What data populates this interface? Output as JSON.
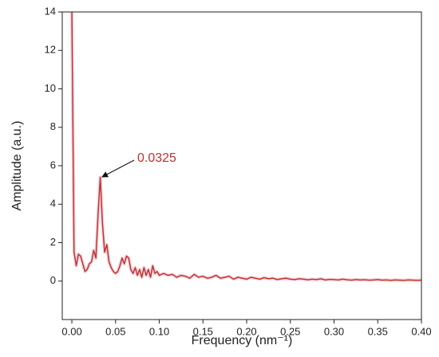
{
  "chart_data": {
    "type": "line",
    "xlabel": "Frequency (nm⁻¹)",
    "ylabel": "Amplitude (a.u.)",
    "annotation": "0.0325",
    "xlim": [
      -0.011,
      0.4
    ],
    "ylim": [
      -2,
      14
    ],
    "xticks": [
      {
        "value": 0,
        "label": "0.00"
      },
      {
        "value": 0.05,
        "label": "0.05"
      },
      {
        "value": 0.1,
        "label": "0.10"
      },
      {
        "value": 0.15,
        "label": "0.15"
      },
      {
        "value": 0.2,
        "label": "0.20"
      },
      {
        "value": 0.25,
        "label": "0.25"
      },
      {
        "value": 0.3,
        "label": "0.30"
      },
      {
        "value": 0.35,
        "label": "0.35"
      },
      {
        "value": 0.4,
        "label": "0.40"
      }
    ],
    "yticks": [
      0,
      2,
      4,
      6,
      8,
      10,
      12,
      14
    ],
    "x": [
      0,
      0.0025,
      0.005,
      0.0075,
      0.01,
      0.0125,
      0.015,
      0.0175,
      0.02,
      0.0225,
      0.025,
      0.0275,
      0.03,
      0.0325,
      0.035,
      0.0375,
      0.04,
      0.0425,
      0.045,
      0.0475,
      0.05,
      0.0525,
      0.055,
      0.0575,
      0.06,
      0.0625,
      0.065,
      0.0675,
      0.07,
      0.0725,
      0.075,
      0.0775,
      0.08,
      0.0825,
      0.085,
      0.0875,
      0.09,
      0.0925,
      0.095,
      0.0975,
      0.1,
      0.105,
      0.11,
      0.115,
      0.12,
      0.125,
      0.13,
      0.135,
      0.14,
      0.145,
      0.15,
      0.155,
      0.16,
      0.165,
      0.17,
      0.175,
      0.18,
      0.185,
      0.19,
      0.195,
      0.2,
      0.205,
      0.21,
      0.215,
      0.22,
      0.225,
      0.23,
      0.235,
      0.24,
      0.245,
      0.25,
      0.255,
      0.26,
      0.265,
      0.27,
      0.275,
      0.28,
      0.285,
      0.29,
      0.295,
      0.3,
      0.305,
      0.31,
      0.315,
      0.32,
      0.325,
      0.33,
      0.335,
      0.34,
      0.345,
      0.35,
      0.355,
      0.36,
      0.365,
      0.37,
      0.375,
      0.38,
      0.385,
      0.39,
      0.395,
      0.4
    ],
    "series": [
      {
        "color": "#c0302a",
        "values": [
          14,
          1.5,
          0.8,
          1.4,
          1.3,
          0.9,
          0.5,
          0.6,
          0.9,
          1.0,
          1.6,
          1.2,
          3.5,
          5.4,
          3.0,
          1.5,
          1.9,
          1.0,
          0.7,
          0.5,
          0.4,
          0.5,
          0.8,
          1.2,
          0.9,
          1.3,
          1.2,
          0.6,
          0.4,
          0.7,
          0.3,
          0.6,
          0.2,
          0.7,
          0.3,
          0.6,
          0.2,
          0.8,
          0.4,
          0.5,
          0.3,
          0.4,
          0.3,
          0.35,
          0.2,
          0.3,
          0.25,
          0.15,
          0.35,
          0.2,
          0.25,
          0.15,
          0.2,
          0.3,
          0.15,
          0.2,
          0.25,
          0.1,
          0.2,
          0.15,
          0.1,
          0.2,
          0.15,
          0.1,
          0.18,
          0.12,
          0.15,
          0.08,
          0.12,
          0.15,
          0.1,
          0.08,
          0.12,
          0.1,
          0.07,
          0.1,
          0.08,
          0.12,
          0.06,
          0.09,
          0.08,
          0.06,
          0.1,
          0.07,
          0.05,
          0.08,
          0.06,
          0.07,
          0.05,
          0.06,
          0.08,
          0.05,
          0.06,
          0.04,
          0.06,
          0.05,
          0.04,
          0.06,
          0.05,
          0.04,
          0.05
        ]
      }
    ]
  }
}
